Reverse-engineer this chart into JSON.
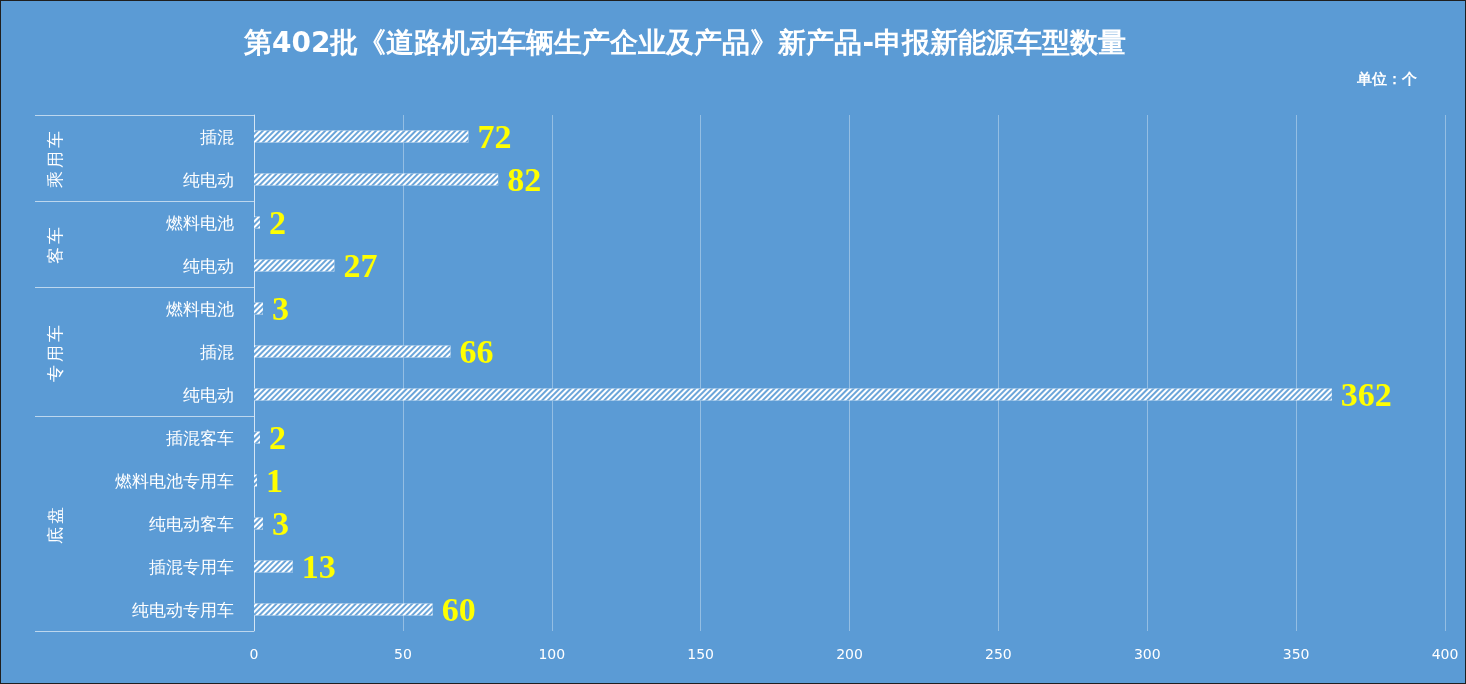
{
  "chart_data": {
    "type": "bar",
    "orientation": "horizontal",
    "title": "第402批《道路机动车辆生产企业及产品》新产品-申报新能源车型数量",
    "annotations": [
      "单位：个",
      "乘用车",
      "客车",
      "专用车",
      "底盘"
    ],
    "categories": [
      "插混",
      "纯电动",
      "燃料电池",
      "纯电动",
      "燃料电池",
      "插混",
      "纯电动",
      "插混客车",
      "燃料电池专用车",
      "纯电动客车",
      "插混专用车",
      "纯电动专用车"
    ],
    "series": [
      {
        "color": "#ffffff",
        "values": [
          72,
          82,
          null,
          null,
          null,
          null,
          null,
          null,
          null,
          null,
          null,
          null
        ]
      },
      {
        "color": "#ffffff",
        "values": [
          null,
          null,
          2,
          27,
          null,
          null,
          null,
          null,
          null,
          null,
          null,
          null
        ]
      },
      {
        "color": "#ffffff",
        "values": [
          null,
          null,
          null,
          null,
          3,
          66,
          362,
          null,
          null,
          null,
          null,
          null
        ]
      },
      {
        "color": "#ffffff",
        "values": [
          null,
          null,
          null,
          null,
          null,
          null,
          null,
          2,
          1,
          3,
          13,
          60
        ]
      }
    ],
    "xlim": [
      0,
      400
    ],
    "xticks": [
      0,
      50,
      100,
      150,
      200,
      250,
      300,
      350,
      400
    ],
    "grid": "x",
    "data_labels": true
  }
}
